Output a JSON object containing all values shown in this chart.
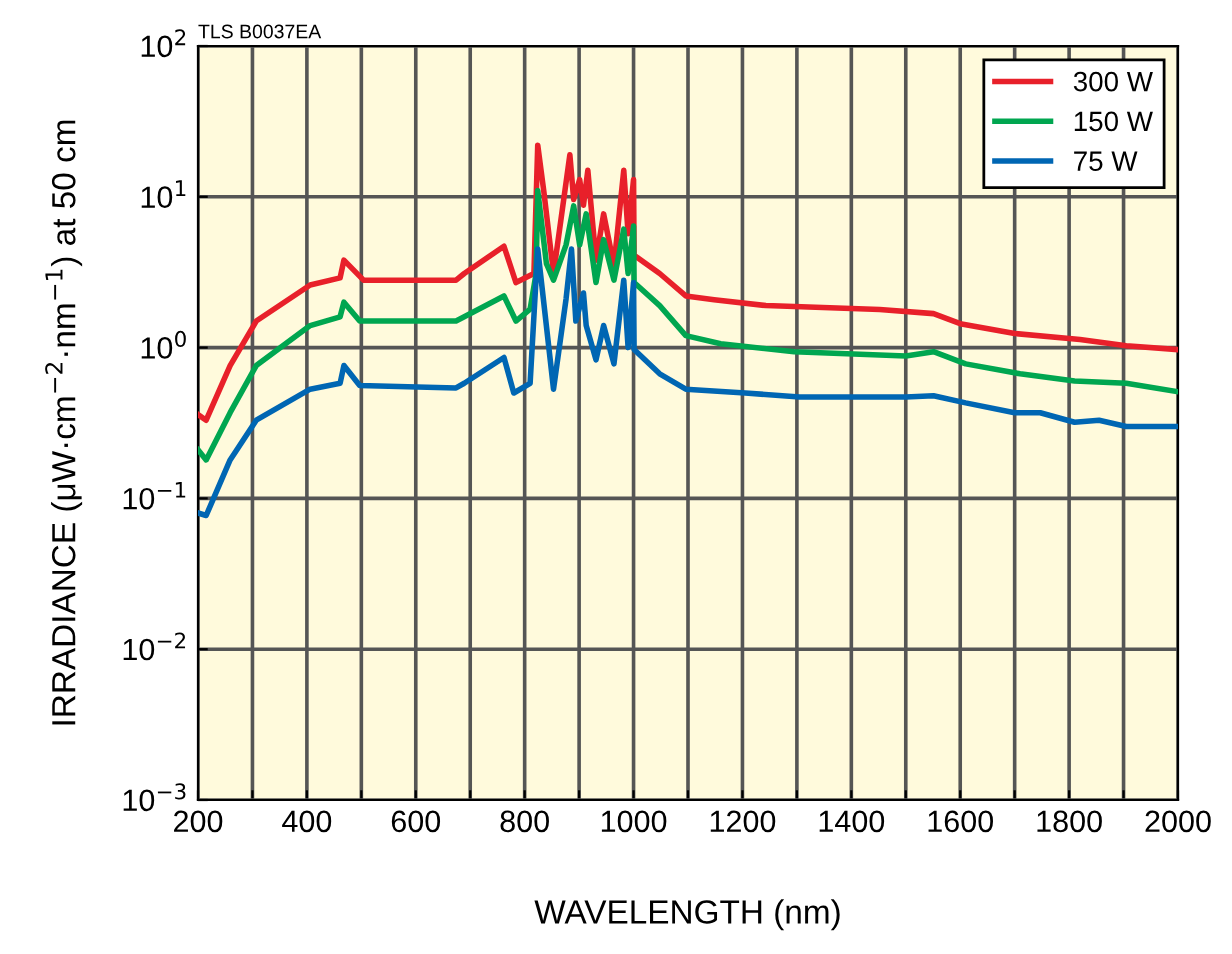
{
  "chart_data": {
    "type": "line",
    "xlabel": "WAVELENGTH (nm)",
    "ylabel": "IRRADIANCE (μW·cm$^{−2}$·nm$^{−1}$) at 50 cm",
    "annotations": [
      "TLS B0037EA"
    ],
    "xlim": [
      200,
      2000
    ],
    "xticks": [
      200,
      {
        "value": 300,
        "label": null
      },
      400,
      {
        "value": 500,
        "label": null
      },
      600,
      {
        "value": 700,
        "label": null
      },
      800,
      {
        "value": 900,
        "label": null
      },
      1000,
      {
        "value": 1100,
        "label": null
      },
      1200,
      {
        "value": 1300,
        "label": null
      },
      1400,
      {
        "value": 1500,
        "label": null
      },
      1600,
      {
        "value": 1700,
        "label": null
      },
      1800,
      {
        "value": 1900,
        "label": null
      },
      2000
    ],
    "ylim": [
      0.001,
      100
    ],
    "yticks": [
      {
        "value": 0.001,
        "label": "10$^{−3}$"
      },
      {
        "value": 0.01,
        "label": "10$^{−2}$"
      },
      {
        "value": 0.1,
        "label": "10$^{−1}$"
      },
      {
        "value": 1,
        "label": "10$^{0}$"
      },
      {
        "value": 10,
        "label": "10$^{1}$"
      },
      {
        "value": 100,
        "label": "10$^{2}$"
      }
    ],
    "log": "y",
    "grid": true,
    "legend": "top right",
    "marker": "none",
    "line_style": "solid",
    "series": [
      {
        "name": "300 W",
        "color": "#e8202a",
        "x": [
          200,
          215,
          259,
          307,
          406,
          461,
          468,
          504,
          674,
          689,
          762,
          784,
          817,
          824,
          835,
          853,
          883,
          890,
          901,
          908,
          916,
          931,
          945,
          964,
          982,
          990,
          1000,
          1001,
          1048,
          1096,
          1148,
          1243,
          1452,
          1551,
          1600,
          1700,
          1820,
          1905,
          2000
        ],
        "values": [
          0.36,
          0.33,
          0.76,
          1.5,
          2.6,
          2.9,
          3.8,
          2.8,
          2.8,
          3.1,
          4.7,
          2.7,
          3.1,
          22,
          11,
          3.1,
          19,
          9.6,
          13,
          8.8,
          15,
          3.8,
          7.7,
          3.5,
          15,
          5.7,
          13,
          4.1,
          3.1,
          2.2,
          2.08,
          1.9,
          1.79,
          1.68,
          1.44,
          1.24,
          1.13,
          1.03,
          0.97
        ]
      },
      {
        "name": "150 W",
        "color": "#00a650",
        "x": [
          200,
          215,
          259,
          307,
          406,
          461,
          468,
          497,
          674,
          689,
          762,
          784,
          810,
          821,
          824,
          840,
          853,
          876,
          890,
          901,
          913,
          931,
          945,
          964,
          982,
          990,
          1000,
          1001,
          1048,
          1096,
          1160,
          1295,
          1500,
          1551,
          1610,
          1710,
          1810,
          1905,
          2000
        ],
        "values": [
          0.21,
          0.18,
          0.37,
          0.76,
          1.4,
          1.6,
          2.0,
          1.5,
          1.5,
          1.6,
          2.2,
          1.5,
          1.8,
          3.1,
          11,
          3.6,
          2.8,
          4.8,
          8.7,
          4.8,
          7.7,
          2.7,
          5.2,
          2.8,
          6.1,
          3.1,
          6.4,
          2.7,
          1.9,
          1.2,
          1.06,
          0.94,
          0.88,
          0.94,
          0.78,
          0.67,
          0.6,
          0.58,
          0.51
        ]
      },
      {
        "name": "75 W",
        "color": "#0066b3",
        "x": [
          200,
          215,
          259,
          307,
          406,
          461,
          468,
          497,
          674,
          689,
          762,
          780,
          810,
          824,
          853,
          876,
          886,
          894,
          908,
          913,
          931,
          945,
          964,
          982,
          990,
          1000,
          1001,
          1048,
          1096,
          1205,
          1305,
          1500,
          1551,
          1610,
          1700,
          1747,
          1810,
          1855,
          1905,
          2000
        ],
        "values": [
          0.08,
          0.077,
          0.18,
          0.33,
          0.53,
          0.58,
          0.76,
          0.56,
          0.54,
          0.58,
          0.86,
          0.5,
          0.58,
          4.5,
          0.53,
          2.1,
          4.5,
          1.5,
          2.3,
          1.4,
          0.83,
          1.4,
          0.78,
          2.8,
          1.0,
          2.7,
          0.97,
          0.67,
          0.53,
          0.5,
          0.47,
          0.47,
          0.48,
          0.43,
          0.37,
          0.37,
          0.32,
          0.33,
          0.3,
          0.3
        ]
      }
    ]
  }
}
